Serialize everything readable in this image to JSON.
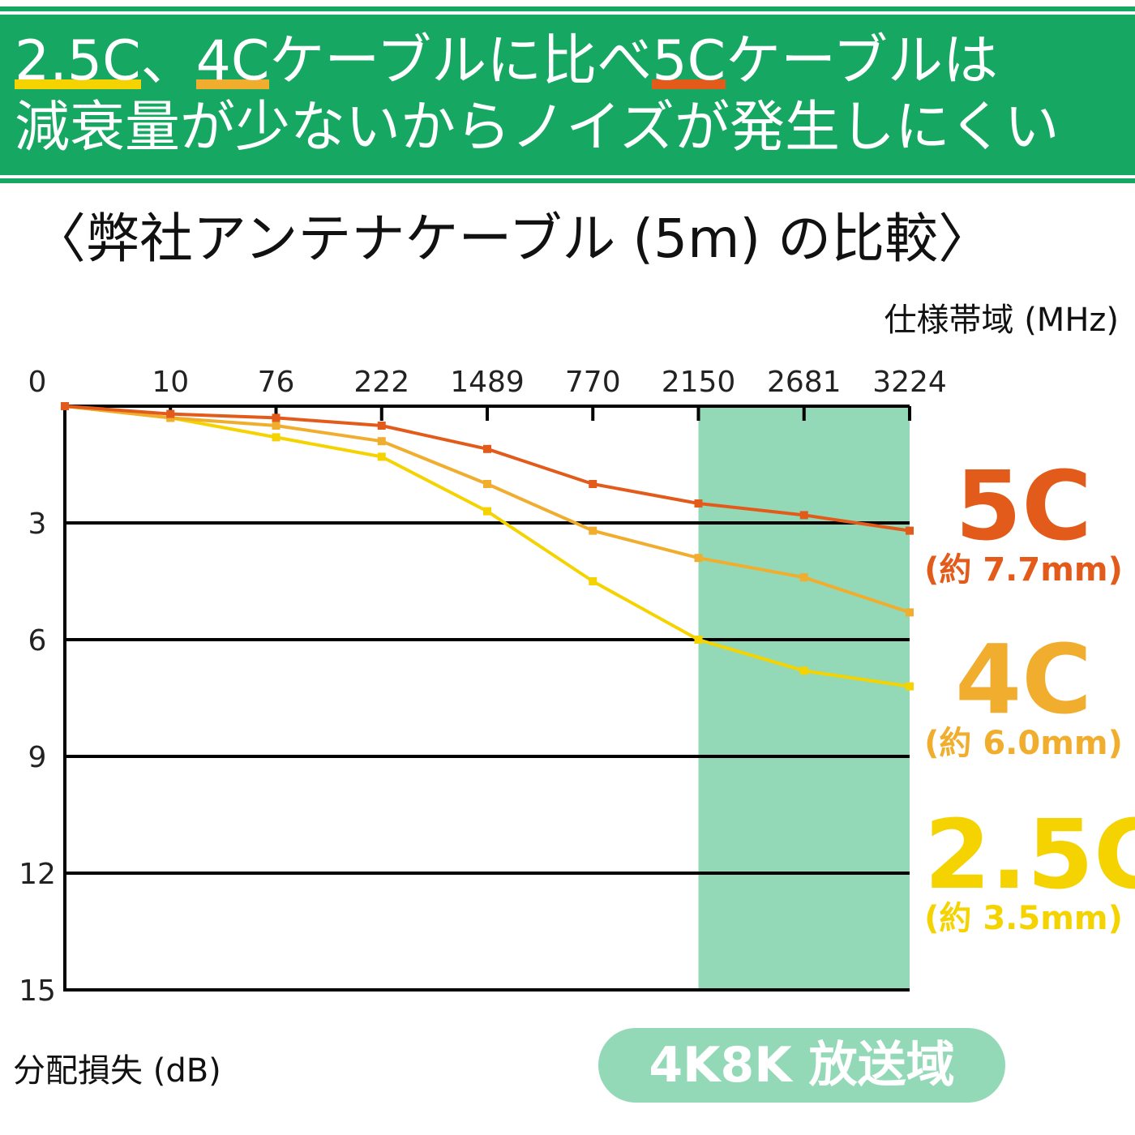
{
  "banner": {
    "line1": [
      {
        "text": "2.5C",
        "highlight": "#f5d300"
      },
      {
        "text": "、",
        "highlight": ""
      },
      {
        "text": "4C",
        "highlight": "#f0ad2e"
      },
      {
        "text": " ケーブルに比べ ",
        "highlight": ""
      },
      {
        "text": "5C",
        "highlight": "#e35b1a"
      },
      {
        "text": " ケーブルは",
        "highlight": ""
      }
    ],
    "line2": "減衰量が少ないからノイズが発生しにくい",
    "bg_color": "#16a862"
  },
  "chart_data": {
    "type": "line",
    "title": "〈弊社アンテナケーブル (5m) の比較〉",
    "xlabel": "仕様帯域 (MHz)",
    "ylabel": "分配損失 (dB)",
    "x_ticks": [
      "0",
      "10",
      "76",
      "222",
      "1489",
      "770",
      "2150",
      "2681",
      "3224"
    ],
    "y_ticks": [
      0,
      3,
      6,
      9,
      12,
      15
    ],
    "y_tick_labels": [
      "0",
      "3",
      "6",
      "9",
      "12",
      "15"
    ],
    "ylim": [
      0,
      15
    ],
    "y_inverted": true,
    "grid": true,
    "highlight_band": {
      "from": "2150",
      "to": "3224",
      "label": "4K8K 放送域",
      "color": "#93d9b7"
    },
    "series": [
      {
        "name": "5C",
        "note": "(約 7.7mm)",
        "color": "#e35b1a",
        "x": [
          "0",
          "10",
          "76",
          "222",
          "1489",
          "770",
          "2150",
          "2681",
          "3224"
        ],
        "values": [
          0,
          0.2,
          0.3,
          0.5,
          1.1,
          2.0,
          2.5,
          2.8,
          3.2
        ]
      },
      {
        "name": "4C",
        "note": "(約 6.0mm)",
        "color": "#f0ad2e",
        "x": [
          "0",
          "10",
          "76",
          "222",
          "1489",
          "770",
          "2150",
          "2681",
          "3224"
        ],
        "values": [
          0,
          0.3,
          0.5,
          0.9,
          2.0,
          3.2,
          3.9,
          4.4,
          5.3
        ]
      },
      {
        "name": "2.5C",
        "note": "(約 3.5mm)",
        "color": "#f5d300",
        "x": [
          "0",
          "10",
          "76",
          "222",
          "1489",
          "770",
          "2150",
          "2681",
          "3224"
        ],
        "values": [
          0,
          0.3,
          0.8,
          1.3,
          2.7,
          4.5,
          6.0,
          6.8,
          7.2
        ]
      }
    ]
  }
}
